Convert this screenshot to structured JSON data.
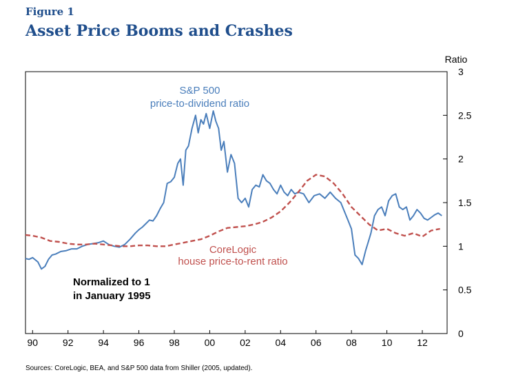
{
  "figure": {
    "label": "Figure 1",
    "title": "Asset Price Booms and Crashes",
    "source": "Sources: CoreLogic, BEA, and S&P 500 data from Shiller (2005, updated)."
  },
  "chart_data": {
    "type": "line",
    "ylabel": "Ratio",
    "ylim": [
      0,
      3
    ],
    "xlim": [
      1989.6,
      2013.4
    ],
    "x_ticks": [
      {
        "value": 1990,
        "label": "90"
      },
      {
        "value": 1992,
        "label": "92"
      },
      {
        "value": 1994,
        "label": "94"
      },
      {
        "value": 1996,
        "label": "96"
      },
      {
        "value": 1998,
        "label": "98"
      },
      {
        "value": 2000,
        "label": "00"
      },
      {
        "value": 2002,
        "label": "02"
      },
      {
        "value": 2004,
        "label": "04"
      },
      {
        "value": 2006,
        "label": "06"
      },
      {
        "value": 2008,
        "label": "08"
      },
      {
        "value": 2010,
        "label": "10"
      },
      {
        "value": 2012,
        "label": "12"
      }
    ],
    "y_ticks": [
      {
        "value": 0,
        "label": "0"
      },
      {
        "value": 0.5,
        "label": "0.5"
      },
      {
        "value": 1,
        "label": "1"
      },
      {
        "value": 1.5,
        "label": "1.5"
      },
      {
        "value": 2,
        "label": "2"
      },
      {
        "value": 2.5,
        "label": "2.5"
      },
      {
        "value": 3,
        "label": "3"
      }
    ],
    "series": [
      {
        "name": "S&P 500 price-to-dividend ratio",
        "label_lines": [
          "S&P 500",
          "price-to-dividend ratio"
        ],
        "color": "#4a7ebb",
        "style": "solid",
        "x": [
          1989.6,
          1989.8,
          1990.0,
          1990.3,
          1990.5,
          1990.7,
          1990.9,
          1991.1,
          1991.3,
          1991.6,
          1991.9,
          1992.2,
          1992.5,
          1992.8,
          1993.1,
          1993.4,
          1993.7,
          1994.0,
          1994.3,
          1994.6,
          1994.9,
          1995.2,
          1995.5,
          1995.8,
          1996.0,
          1996.2,
          1996.4,
          1996.6,
          1996.8,
          1997.0,
          1997.2,
          1997.4,
          1997.6,
          1997.8,
          1998.0,
          1998.2,
          1998.35,
          1998.5,
          1998.65,
          1998.8,
          1999.0,
          1999.2,
          1999.35,
          1999.5,
          1999.65,
          1999.8,
          2000.0,
          2000.2,
          2000.35,
          2000.5,
          2000.65,
          2000.8,
          2001.0,
          2001.2,
          2001.4,
          2001.6,
          2001.8,
          2002.0,
          2002.2,
          2002.4,
          2002.6,
          2002.8,
          2003.0,
          2003.2,
          2003.4,
          2003.6,
          2003.8,
          2004.0,
          2004.2,
          2004.4,
          2004.6,
          2004.8,
          2005.0,
          2005.3,
          2005.6,
          2005.9,
          2006.2,
          2006.5,
          2006.8,
          2007.1,
          2007.4,
          2007.6,
          2007.8,
          2008.0,
          2008.2,
          2008.4,
          2008.6,
          2008.8,
          2008.95,
          2009.1,
          2009.3,
          2009.5,
          2009.7,
          2009.9,
          2010.1,
          2010.3,
          2010.5,
          2010.7,
          2010.9,
          2011.1,
          2011.3,
          2011.5,
          2011.7,
          2011.9,
          2012.1,
          2012.3,
          2012.5,
          2012.7,
          2012.9,
          2013.1
        ],
        "y": [
          0.86,
          0.85,
          0.87,
          0.82,
          0.74,
          0.77,
          0.85,
          0.9,
          0.91,
          0.94,
          0.95,
          0.97,
          0.97,
          1.0,
          1.02,
          1.03,
          1.04,
          1.06,
          1.02,
          1.0,
          0.99,
          1.02,
          1.08,
          1.15,
          1.19,
          1.22,
          1.26,
          1.3,
          1.29,
          1.35,
          1.43,
          1.5,
          1.72,
          1.74,
          1.79,
          1.95,
          2.0,
          1.7,
          2.1,
          2.15,
          2.35,
          2.5,
          2.3,
          2.45,
          2.4,
          2.52,
          2.35,
          2.55,
          2.43,
          2.35,
          2.1,
          2.2,
          1.85,
          2.05,
          1.95,
          1.55,
          1.5,
          1.55,
          1.45,
          1.65,
          1.7,
          1.68,
          1.82,
          1.75,
          1.72,
          1.65,
          1.6,
          1.7,
          1.62,
          1.58,
          1.65,
          1.6,
          1.62,
          1.6,
          1.5,
          1.58,
          1.6,
          1.55,
          1.62,
          1.55,
          1.5,
          1.4,
          1.3,
          1.2,
          0.9,
          0.86,
          0.79,
          0.95,
          1.05,
          1.15,
          1.35,
          1.42,
          1.45,
          1.35,
          1.52,
          1.58,
          1.6,
          1.45,
          1.42,
          1.45,
          1.3,
          1.35,
          1.42,
          1.38,
          1.32,
          1.3,
          1.33,
          1.36,
          1.38,
          1.35
        ]
      },
      {
        "name": "CoreLogic house price-to-rent ratio",
        "label_lines": [
          "CoreLogic",
          "house price-to-rent ratio"
        ],
        "color": "#c0504d",
        "style": "dashed",
        "x": [
          1989.6,
          1990.0,
          1990.5,
          1991.0,
          1991.5,
          1992.0,
          1992.5,
          1993.0,
          1993.5,
          1994.0,
          1994.5,
          1995.0,
          1995.5,
          1996.0,
          1996.5,
          1997.0,
          1997.5,
          1998.0,
          1998.5,
          1999.0,
          1999.5,
          2000.0,
          2000.5,
          2001.0,
          2001.5,
          2002.0,
          2002.5,
          2003.0,
          2003.5,
          2004.0,
          2004.5,
          2005.0,
          2005.5,
          2006.0,
          2006.5,
          2007.0,
          2007.5,
          2008.0,
          2008.5,
          2009.0,
          2009.5,
          2010.0,
          2010.5,
          2011.0,
          2011.5,
          2012.0,
          2012.5,
          2013.0
        ],
        "y": [
          1.13,
          1.12,
          1.1,
          1.06,
          1.05,
          1.03,
          1.02,
          1.02,
          1.03,
          1.02,
          1.01,
          1.0,
          1.0,
          1.01,
          1.01,
          1.0,
          1.0,
          1.02,
          1.04,
          1.06,
          1.08,
          1.12,
          1.17,
          1.21,
          1.22,
          1.23,
          1.25,
          1.28,
          1.33,
          1.4,
          1.5,
          1.62,
          1.75,
          1.82,
          1.8,
          1.72,
          1.6,
          1.45,
          1.35,
          1.25,
          1.18,
          1.2,
          1.15,
          1.12,
          1.15,
          1.11,
          1.18,
          1.2
        ]
      }
    ],
    "annotations": [
      "Normalized to 1",
      "in January 1995"
    ]
  }
}
